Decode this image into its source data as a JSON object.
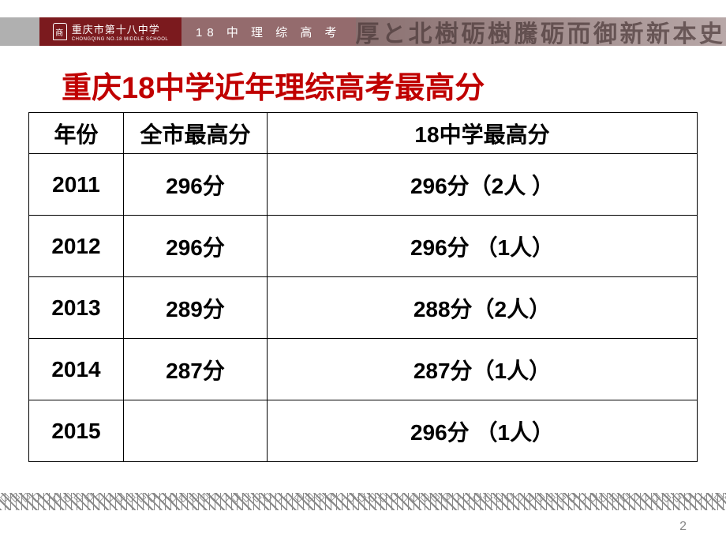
{
  "header": {
    "logo_main": "重庆市第十八中学",
    "logo_sub": "CHONGQING NO.18 MIDDLE SCHOOL",
    "subtitle": "18 中 理 综 高 考",
    "ribbon_art": "厚 と 北 樹 砺 樹 騰 砺 而 御 新 新 本 史 个 州"
  },
  "title": "重庆18中学近年理综高考最高分",
  "table": {
    "columns": [
      "年份",
      "全市最高分",
      "18中学最高分"
    ],
    "rows": [
      {
        "year": "2011",
        "city": "296分",
        "school": "296分（2人 ）"
      },
      {
        "year": "2012",
        "city": "296分",
        "school": "296分 （1人）"
      },
      {
        "year": "2013",
        "city": "289分",
        "school": "288分（2人）"
      },
      {
        "year": "2014",
        "city": "287分",
        "school": "287分（1人）"
      },
      {
        "year": "2015",
        "city": "",
        "school": "296分 （1人）"
      }
    ],
    "border_color": "#000000",
    "text_color": "#000000",
    "header_fontsize": 28,
    "cell_fontsize": 28
  },
  "page_number": "2",
  "colors": {
    "title": "#c00000",
    "logo_bg": "#7b1a1e",
    "subtitle_bg": "#946b6d",
    "background": "#ffffff",
    "page_num": "#898989"
  }
}
